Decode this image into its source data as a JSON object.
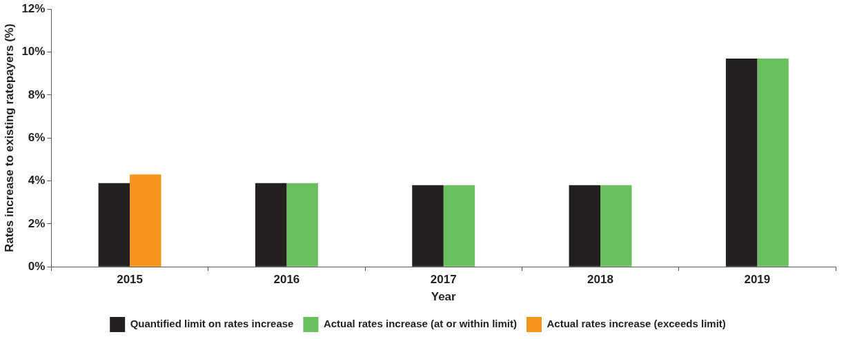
{
  "chart_data": {
    "type": "bar",
    "xlabel": "Year",
    "ylabel": "Rates increase to existing ratepayers (%)",
    "categories": [
      "2015",
      "2016",
      "2017",
      "2018",
      "2019"
    ],
    "series": [
      {
        "name": "Quantified limit on rates increase",
        "color": "#231f20",
        "values": [
          3.9,
          3.9,
          3.8,
          3.8,
          9.7
        ]
      },
      {
        "name": "Actual rates increase (at or within limit)",
        "color": "#6abf5e",
        "values": [
          null,
          3.9,
          3.8,
          3.8,
          9.7
        ]
      },
      {
        "name": "Actual rates increase (exceeds limit)",
        "color": "#f7941d",
        "values": [
          4.3,
          null,
          null,
          null,
          null
        ]
      }
    ],
    "ylim": [
      0,
      12
    ],
    "yticks": [
      {
        "value": 0,
        "label": "0%"
      },
      {
        "value": 2,
        "label": "2%"
      },
      {
        "value": 4,
        "label": "4%"
      },
      {
        "value": 6,
        "label": "6%"
      },
      {
        "value": 8,
        "label": "8%"
      },
      {
        "value": 10,
        "label": "10%"
      },
      {
        "value": 12,
        "label": "12%"
      }
    ],
    "grid": false,
    "legend": "bottom"
  }
}
